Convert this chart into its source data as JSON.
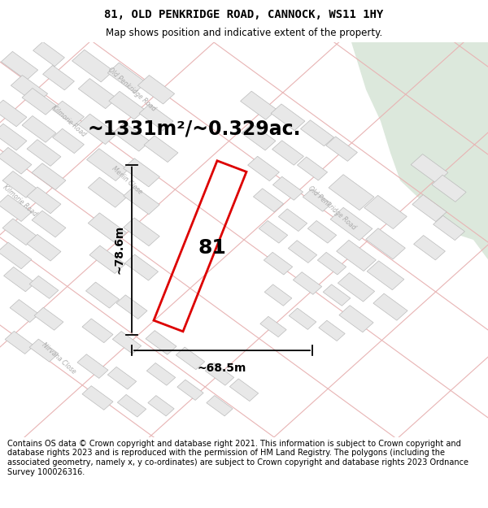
{
  "title_line1": "81, OLD PENKRIDGE ROAD, CANNOCK, WS11 1HY",
  "title_line2": "Map shows position and indicative extent of the property.",
  "area_text": "~1331m²/~0.329ac.",
  "label_81": "81",
  "dim_width": "~68.5m",
  "dim_height": "~78.6m",
  "footer_text": "Contains OS data © Crown copyright and database right 2021. This information is subject to Crown copyright and database rights 2023 and is reproduced with the permission of HM Land Registry. The polygons (including the associated geometry, namely x, y co-ordinates) are subject to Crown copyright and database rights 2023 Ordnance Survey 100026316.",
  "map_bg": "#ffffff",
  "road_fill": "#ffffff",
  "road_line_color": "#e8b4b4",
  "building_fill": "#e8e8e8",
  "building_edge": "#bbbbbb",
  "parcel_line_color": "#e8b0b0",
  "green_area_color": "#dce8dc",
  "red_outline": "#dd0000",
  "fig_width": 6.0,
  "fig_height": 6.25,
  "dpi": 100,
  "title_fontsize": 10,
  "subtitle_fontsize": 8.5,
  "area_fontsize": 17,
  "label_fontsize": 18,
  "dim_fontsize": 10,
  "footer_fontsize": 7
}
